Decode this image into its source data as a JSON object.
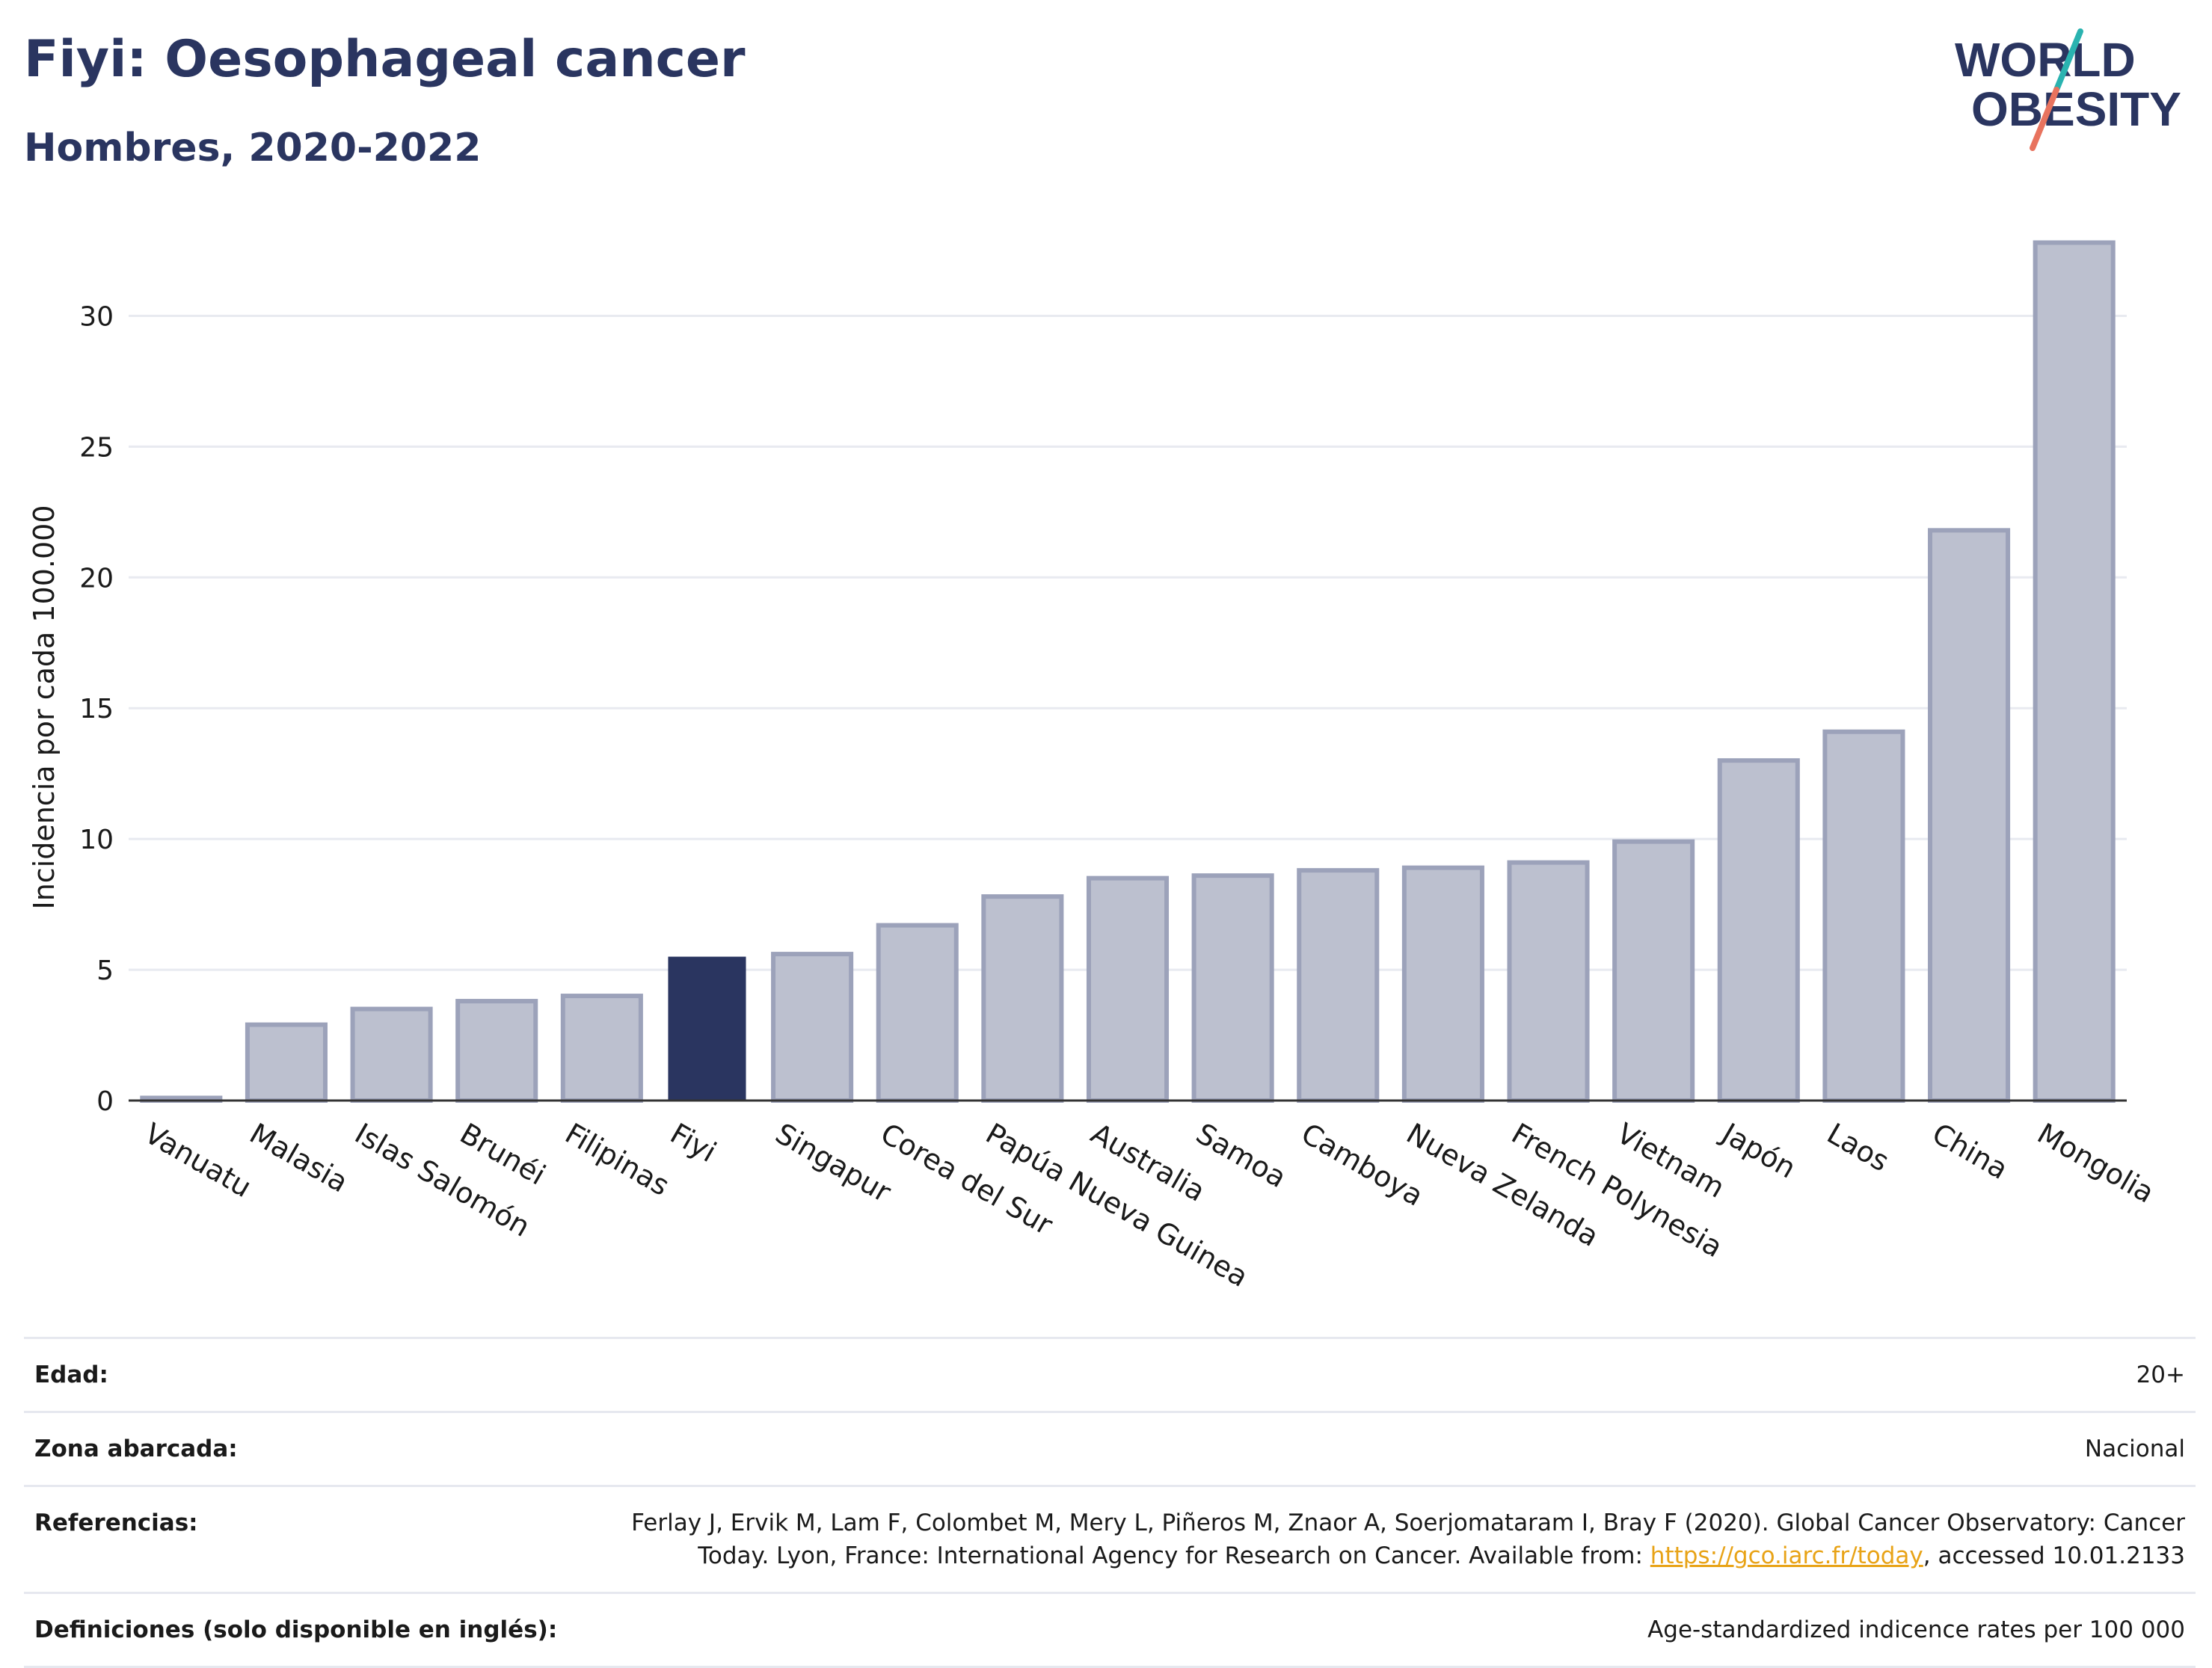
{
  "header": {
    "title": "Fiyi: Oesophageal cancer",
    "subtitle": "Hombres, 2020-2022"
  },
  "logo": {
    "line1": "WORLD",
    "line2": "OBESITY",
    "colors": {
      "text": "#2a3560",
      "slash_teal": "#2ab3b0",
      "slash_coral": "#e8735e"
    }
  },
  "chart_data": {
    "type": "bar",
    "ylabel": "Incidencia por cada 100.000",
    "xlabel": "",
    "ylim": [
      0,
      33.5
    ],
    "yticks": [
      0,
      5,
      10,
      15,
      20,
      25,
      30
    ],
    "grid": true,
    "categories": [
      "Vanuatu",
      "Malasia",
      "Islas Salomón",
      "Brunéi",
      "Filipinas",
      "Fiyi",
      "Singapur",
      "Corea del Sur",
      "Papúa Nueva Guinea",
      "Australia",
      "Samoa",
      "Camboya",
      "Nueva Zelanda",
      "French Polynesia",
      "Vietnam",
      "Japón",
      "Laos",
      "China",
      "Mongolia"
    ],
    "values": [
      0.1,
      2.9,
      3.5,
      3.8,
      4.0,
      5.5,
      5.6,
      6.7,
      7.8,
      8.5,
      8.6,
      8.8,
      8.9,
      9.1,
      9.9,
      13.0,
      14.1,
      21.8,
      32.8
    ],
    "highlight": "Fiyi",
    "colors": {
      "bar": "#bcc0cf",
      "bar_border": "#9ca2ba",
      "highlight": "#2a3560"
    }
  },
  "info": {
    "age_label": "Edad:",
    "age_value": "20+",
    "area_label": "Zona abarcada:",
    "area_value": "Nacional",
    "refs_label": "Referencias:",
    "refs_text": "Ferlay J, Ervik M, Lam F, Colombet M, Mery L, Piñeros M, Znaor A, Soerjomataram I, Bray F (2020). Global Cancer Observatory: Cancer Today. Lyon, France: International Agency for Research on Cancer. Available from: ",
    "refs_link": "https://gco.iarc.fr/today",
    "refs_suffix": ", accessed 10.01.2133",
    "defs_label": "Definiciones (solo disponible en inglés):",
    "defs_value": "Age-standardized indicence rates per 100 000"
  }
}
